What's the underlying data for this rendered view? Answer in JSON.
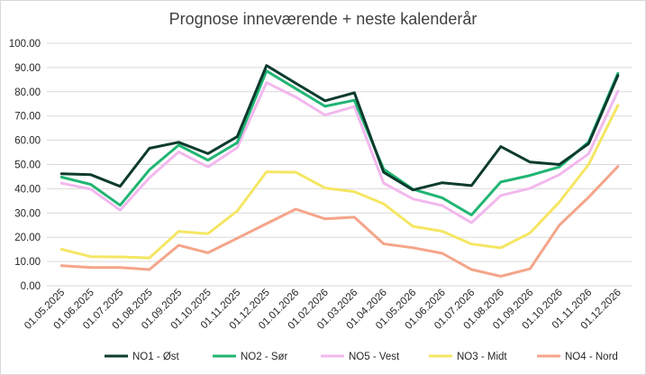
{
  "chart_data": {
    "type": "line",
    "title": "Prognose inneværende + neste kalenderår",
    "xlabel": "",
    "ylabel": "",
    "ylim": [
      0,
      100
    ],
    "yticks": [
      "0.00",
      "10.00",
      "20.00",
      "30.00",
      "40.00",
      "50.00",
      "60.00",
      "70.00",
      "80.00",
      "90.00",
      "100.00"
    ],
    "grid": true,
    "legend_position": "bottom",
    "categories": [
      "01.05.2025",
      "01.06.2025",
      "01.07.2025",
      "01.08.2025",
      "01.09.2025",
      "01.10.2025",
      "01.11.2025",
      "01.12.2025",
      "01.01.2026",
      "01.02.2026",
      "01.03.2026",
      "01.04.2026",
      "01.05.2026",
      "01.06.2026",
      "01.07.2026",
      "01.08.2026",
      "01.09.2026",
      "01.10.2026",
      "01.11.2026",
      "01.12.2026"
    ],
    "series": [
      {
        "name": "NO1 - Øst",
        "color": "#0d3b2e",
        "values": [
          46.2,
          45.8,
          41.0,
          56.7,
          59.2,
          54.5,
          61.5,
          90.8,
          83.5,
          76.3,
          79.6,
          46.8,
          39.5,
          42.5,
          41.3,
          57.4,
          51.0,
          50.0,
          58.6,
          86.7
        ]
      },
      {
        "name": "NO2 - Sør",
        "color": "#21b573",
        "values": [
          44.8,
          41.8,
          33.2,
          47.8,
          58.0,
          51.8,
          59.0,
          88.6,
          81.3,
          74.0,
          76.5,
          48.1,
          39.8,
          36.3,
          29.2,
          42.8,
          45.5,
          49.0,
          59.3,
          87.6
        ]
      },
      {
        "name": "NO5 - Vest",
        "color": "#f2b8ee",
        "values": [
          42.3,
          39.8,
          31.2,
          44.5,
          55.2,
          49.0,
          57.0,
          83.8,
          77.8,
          70.4,
          73.9,
          42.3,
          35.8,
          33.1,
          26.0,
          37.2,
          40.2,
          45.8,
          54.4,
          80.3
        ]
      },
      {
        "name": "NO3 - Midt",
        "color": "#f5e663",
        "values": [
          15.0,
          12.0,
          11.9,
          11.5,
          22.4,
          21.5,
          30.8,
          47.0,
          46.8,
          40.3,
          38.8,
          33.8,
          24.5,
          22.5,
          17.2,
          15.6,
          21.8,
          34.5,
          50.0,
          74.4
        ]
      },
      {
        "name": "NO4 - Nord",
        "color": "#f4a58a",
        "values": [
          8.3,
          7.5,
          7.5,
          6.7,
          16.7,
          13.6,
          19.6,
          25.6,
          31.6,
          27.6,
          28.3,
          17.3,
          15.7,
          13.4,
          6.7,
          3.9,
          7.0,
          25.0,
          36.5,
          49.2
        ]
      }
    ]
  }
}
